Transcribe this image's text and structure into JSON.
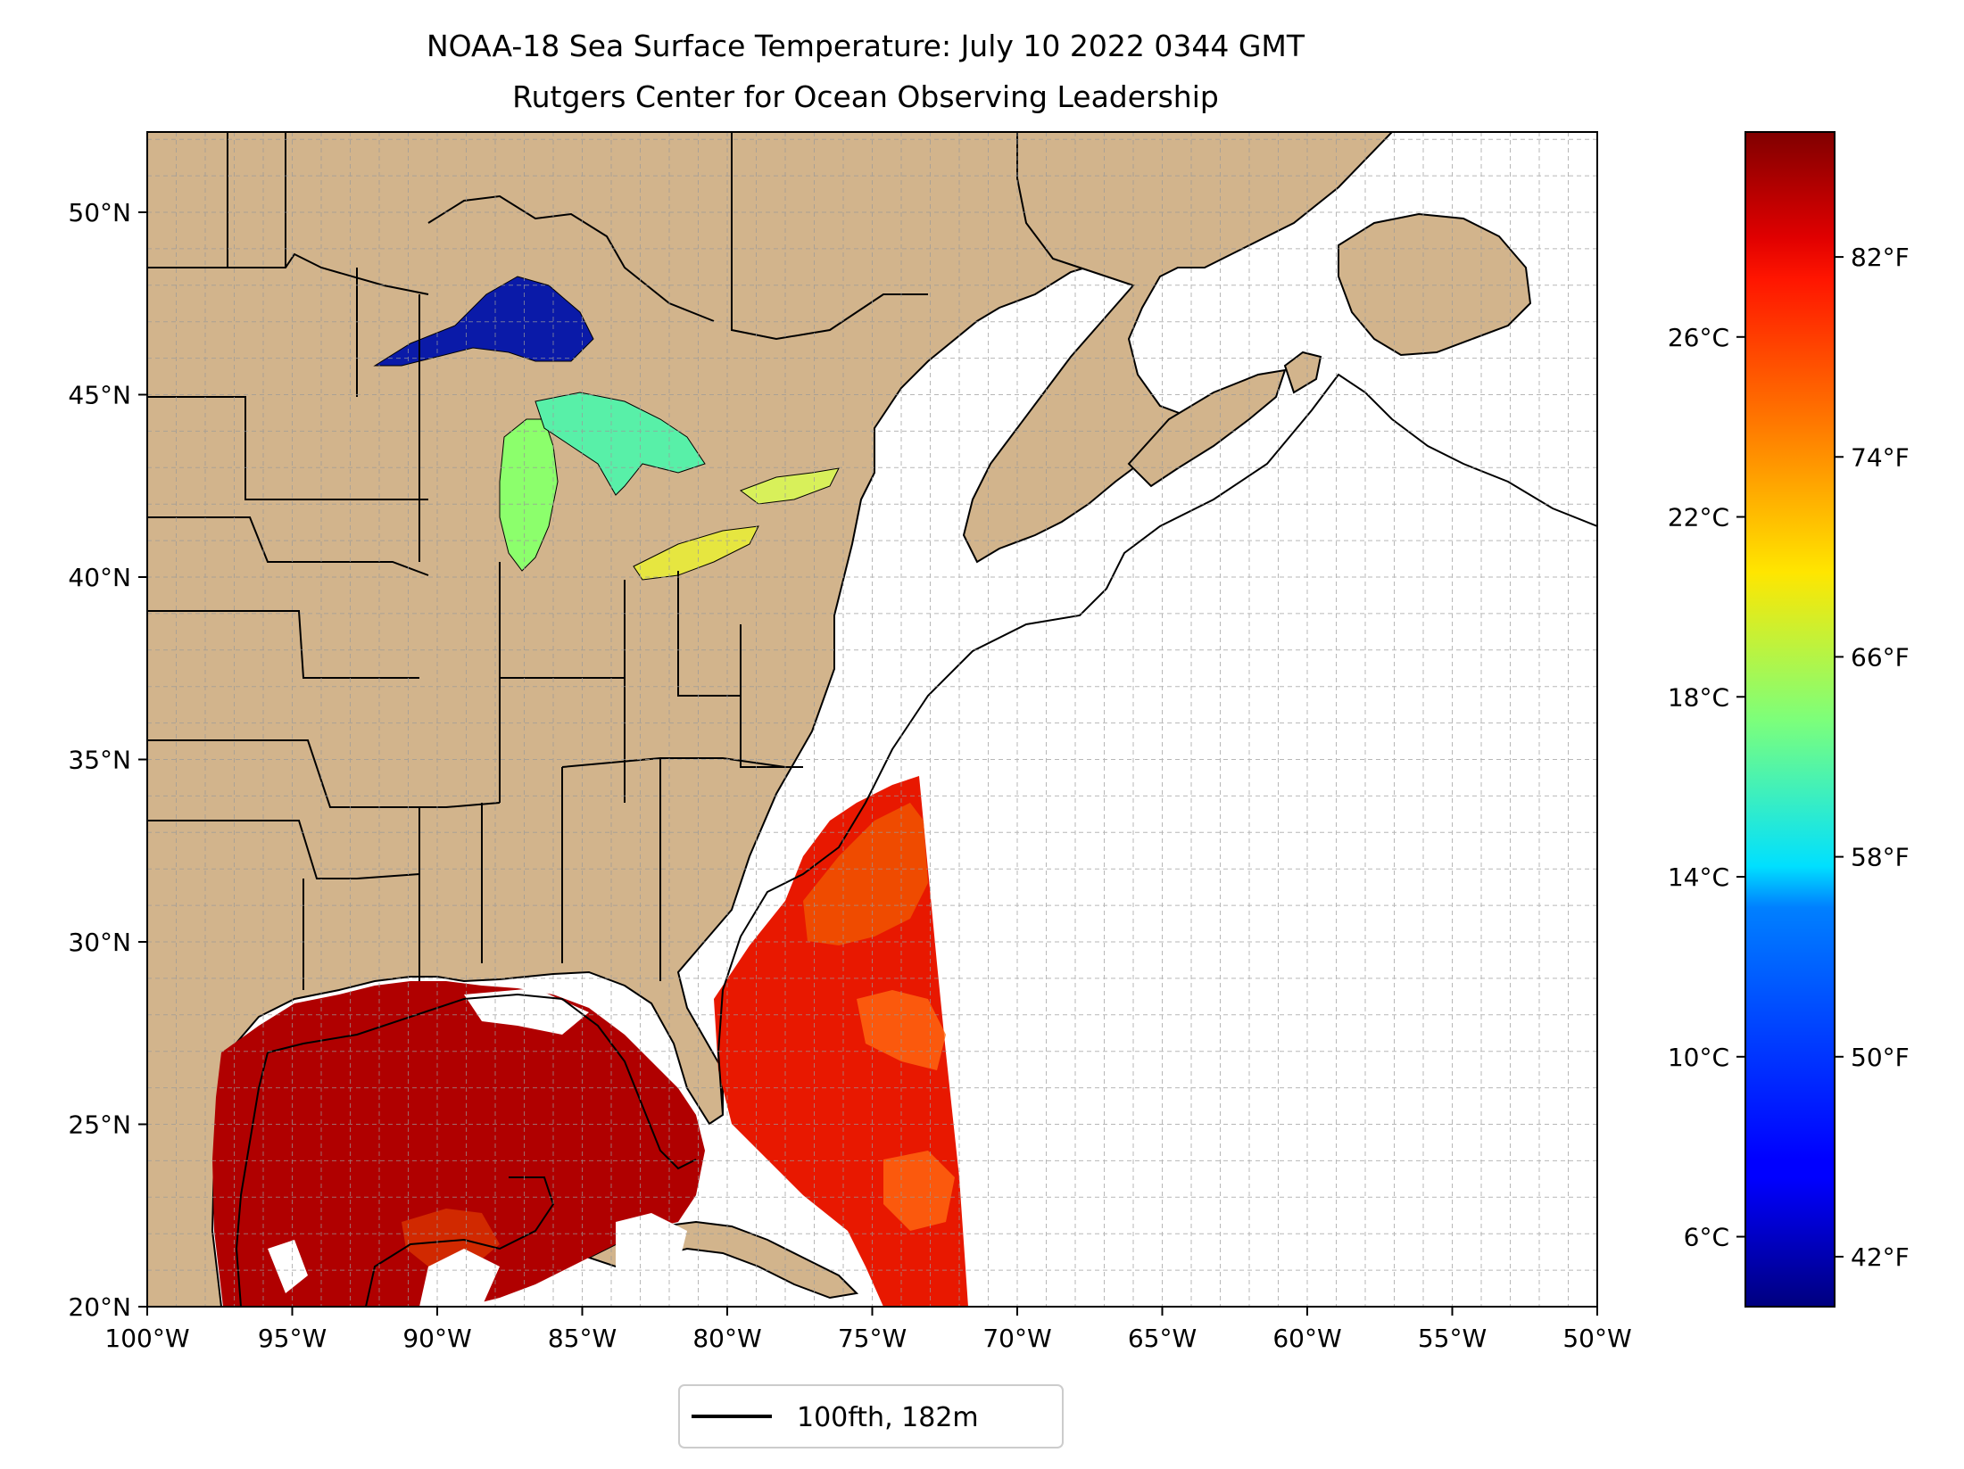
{
  "title_line1": "NOAA-18 Sea Surface Temperature: July 10 2022 0344 GMT",
  "title_line2": "Rutgers Center for Ocean Observing Leadership",
  "map": {
    "projection": "PlateCarree",
    "lon_range": [
      -100,
      -50
    ],
    "lat_range": [
      20,
      52.2
    ],
    "gridlines": "dashed, 1 degree",
    "x_tick_labels": [
      {
        "lon": -100,
        "label": "100°W"
      },
      {
        "lon": -95,
        "label": "95°W"
      },
      {
        "lon": -90,
        "label": "90°W"
      },
      {
        "lon": -85,
        "label": "85°W"
      },
      {
        "lon": -80,
        "label": "80°W"
      },
      {
        "lon": -75,
        "label": "75°W"
      },
      {
        "lon": -70,
        "label": "70°W"
      },
      {
        "lon": -65,
        "label": "65°W"
      },
      {
        "lon": -60,
        "label": "60°W"
      },
      {
        "lon": -55,
        "label": "55°W"
      },
      {
        "lon": -50,
        "label": "50°W"
      }
    ],
    "y_tick_labels": [
      {
        "lat": 20,
        "label": "20°N"
      },
      {
        "lat": 25,
        "label": "25°N"
      },
      {
        "lat": 30,
        "label": "30°N"
      },
      {
        "lat": 35,
        "label": "35°N"
      },
      {
        "lat": 40,
        "label": "40°N"
      },
      {
        "lat": 45,
        "label": "45°N"
      },
      {
        "lat": 50,
        "label": "50°N"
      }
    ],
    "land_color": "#d2b48c",
    "lake_color": "#97b6e1",
    "ocean_color": "#ffffff"
  },
  "legend": {
    "label": "100fth, 182m",
    "line_color": "#000000",
    "placement": "below map, centered"
  },
  "colorbar": {
    "colormap": "jet",
    "range_f": [
      40,
      87
    ],
    "celsius_ticks": [
      {
        "value_f": 42.8,
        "label": "6°C"
      },
      {
        "value_f": 50,
        "label": "10°C"
      },
      {
        "value_f": 57.2,
        "label": "14°C"
      },
      {
        "value_f": 64.4,
        "label": "18°C"
      },
      {
        "value_f": 71.6,
        "label": "22°C"
      },
      {
        "value_f": 78.8,
        "label": "26°C"
      }
    ],
    "fahrenheit_ticks": [
      {
        "value_f": 42,
        "label": "42°F"
      },
      {
        "value_f": 50,
        "label": "50°F"
      },
      {
        "value_f": 58,
        "label": "58°F"
      },
      {
        "value_f": 66,
        "label": "66°F"
      },
      {
        "value_f": 74,
        "label": "74°F"
      },
      {
        "value_f": 82,
        "label": "82°F"
      }
    ]
  }
}
